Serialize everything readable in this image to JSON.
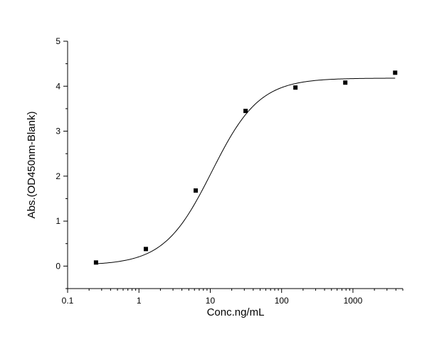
{
  "chart_data": {
    "type": "scatter",
    "title": "",
    "xlabel": "Conc.ng/mL",
    "ylabel": "Abs.(OD450nm-Blank)",
    "x_scale": "log",
    "xlim": [
      0.1,
      5000
    ],
    "ylim": [
      -0.5,
      5
    ],
    "x_ticks": [
      "0.1",
      "1",
      "10",
      "100",
      "1000"
    ],
    "y_ticks": [
      "0",
      "1",
      "2",
      "3",
      "4",
      "5"
    ],
    "grid": false,
    "legend": "none",
    "series": [
      {
        "marker": "square",
        "x": [
          0.25,
          1.25,
          6.25,
          31.25,
          156.25,
          781.25,
          3906.25
        ],
        "y": [
          0.08,
          0.38,
          1.68,
          3.45,
          3.97,
          4.08,
          4.3
        ]
      }
    ],
    "fit_curve": {
      "model": "4PL",
      "bottom": 0.02,
      "top": 4.18,
      "ec50": 10.5,
      "hill": 1.3
    },
    "colors": {
      "axis": "#000000",
      "marker": "#000000",
      "curve": "#000000"
    }
  }
}
